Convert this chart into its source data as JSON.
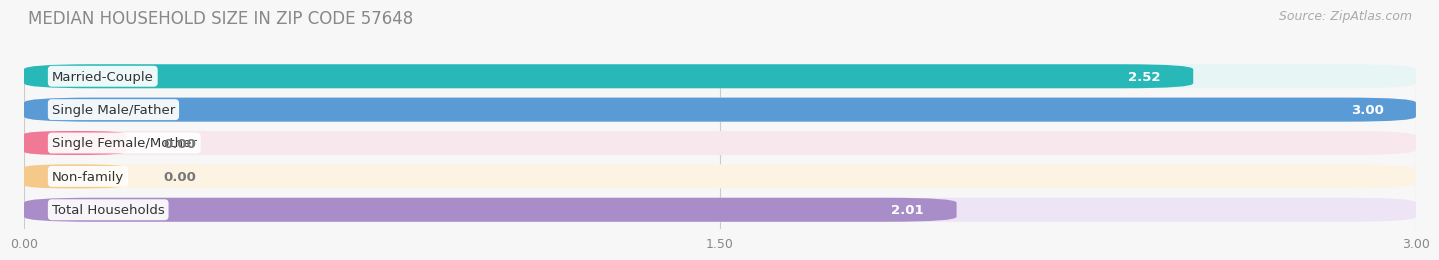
{
  "title": "MEDIAN HOUSEHOLD SIZE IN ZIP CODE 57648",
  "source": "Source: ZipAtlas.com",
  "categories": [
    "Married-Couple",
    "Single Male/Father",
    "Single Female/Mother",
    "Non-family",
    "Total Households"
  ],
  "values": [
    2.52,
    3.0,
    0.0,
    0.0,
    2.01
  ],
  "bar_colors": [
    "#29b8b8",
    "#5b9bd5",
    "#f07a95",
    "#f5c98a",
    "#a98dc8"
  ],
  "bar_bg_colors": [
    "#e8f5f5",
    "#e2eef8",
    "#f8e8ed",
    "#fdf3e3",
    "#ede4f5"
  ],
  "zero_bar_colors": [
    "#f07a95",
    "#f5c98a"
  ],
  "label_colors": [
    "white",
    "white",
    "white",
    "#888888",
    "white"
  ],
  "value_colors": [
    "white",
    "white",
    "#777777",
    "#777777",
    "white"
  ],
  "xlim": [
    0,
    3.0
  ],
  "xticks": [
    0.0,
    1.5,
    3.0
  ],
  "xtick_labels": [
    "0.00",
    "1.50",
    "3.00"
  ],
  "title_fontsize": 12,
  "source_fontsize": 9,
  "label_fontsize": 9.5,
  "bar_label_fontsize": 9.5,
  "background_color": "#f7f7f7"
}
